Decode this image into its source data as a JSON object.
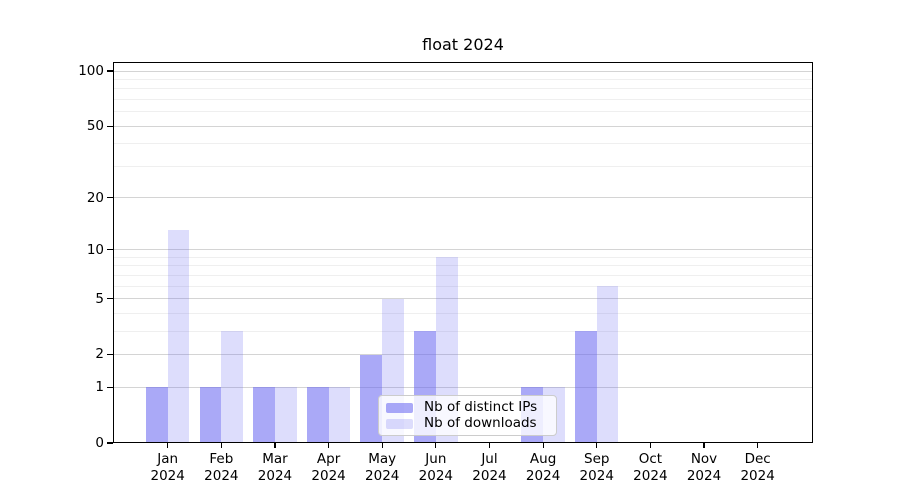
{
  "figure": {
    "title": "float 2024",
    "background": "#ffffff"
  },
  "chart_data": {
    "type": "bar",
    "title": "float 2024",
    "x_unit": "month",
    "categories": [
      {
        "month": "Jan",
        "year": "2024"
      },
      {
        "month": "Feb",
        "year": "2024"
      },
      {
        "month": "Mar",
        "year": "2024"
      },
      {
        "month": "Apr",
        "year": "2024"
      },
      {
        "month": "May",
        "year": "2024"
      },
      {
        "month": "Jun",
        "year": "2024"
      },
      {
        "month": "Jul",
        "year": "2024"
      },
      {
        "month": "Aug",
        "year": "2024"
      },
      {
        "month": "Sep",
        "year": "2024"
      },
      {
        "month": "Oct",
        "year": "2024"
      },
      {
        "month": "Nov",
        "year": "2024"
      },
      {
        "month": "Dec",
        "year": "2024"
      }
    ],
    "series": [
      {
        "name": "Nb of distinct IPs",
        "color": "rgba(100,99,241,0.55)",
        "values": [
          1,
          1,
          1,
          1,
          2,
          3,
          0,
          1,
          3,
          0,
          0,
          0
        ]
      },
      {
        "name": "Nb of downloads",
        "color": "rgba(100,99,241,0.22)",
        "values": [
          13,
          3,
          1,
          1,
          5,
          9,
          0,
          1,
          6,
          0,
          0,
          0
        ]
      }
    ],
    "y_scale": "log1p",
    "y_ticks": [
      0,
      1,
      2,
      5,
      10,
      20,
      50,
      100
    ],
    "y_minor_ticks": [
      3,
      4,
      6,
      7,
      8,
      9,
      30,
      40,
      60,
      70,
      80,
      90
    ],
    "ylim": [
      0,
      112
    ],
    "xlabel": "",
    "ylabel": "",
    "grid": true,
    "legend_position": "inside-bottom-center"
  },
  "colors": {
    "grid_major": "#d4d4d4",
    "grid_minor": "#efefef",
    "spine": "#000000",
    "tick_text": "#000000",
    "legend_border": "#cccccc",
    "legend_background": "rgba(255,255,255,0.8)"
  }
}
